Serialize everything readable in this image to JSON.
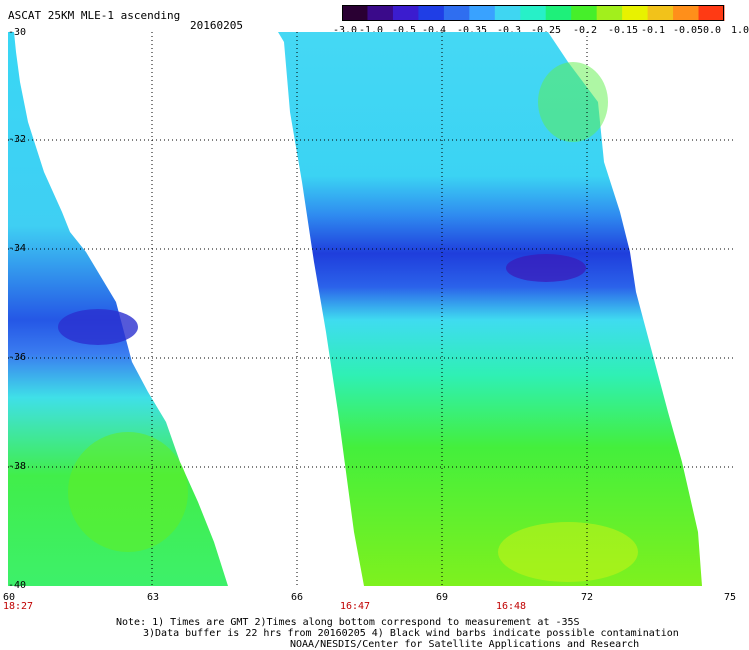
{
  "header": {
    "title": "ASCAT 25KM MLE-1 ascending",
    "date": "20160205"
  },
  "colorbar": {
    "labels": [
      "-3.0",
      "-1.0",
      "-0.5",
      "-0.4",
      "-0.35",
      "-0.3",
      "-0.25",
      "-0.2",
      "-0.15",
      "-0.1",
      "-0.05",
      "0.0",
      "1.0"
    ],
    "colors": [
      "#2a0033",
      "#3a0a8a",
      "#3b1ccf",
      "#1f3ee6",
      "#2f6ef0",
      "#39a2ff",
      "#3fd6f2",
      "#27f0c8",
      "#1ef07a",
      "#46ef2a",
      "#a2ef1c",
      "#e8f200",
      "#f2c21a",
      "#ff8f1a",
      "#ff3a14"
    ]
  },
  "axes": {
    "lat_labels": [
      "-30",
      "-32",
      "-34",
      "-36",
      "-38",
      "-40"
    ],
    "lon_labels": [
      "60",
      "63",
      "66",
      "69",
      "72",
      "75"
    ]
  },
  "time_labels": [
    "18:27",
    "16:47",
    "16:48"
  ],
  "notes": [
    "Note: 1) Times are GMT 2)Times along bottom correspond to measurement at -35S",
    "3)Data buffer is 22 hrs from 20160205 4) Black wind barbs indicate possible contamination",
    "NOAA/NESDIS/Center for Satellite Applications and Research"
  ]
}
